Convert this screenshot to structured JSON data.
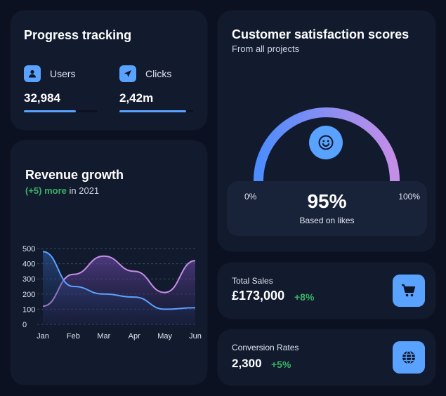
{
  "progress": {
    "title": "Progress tracking",
    "users": {
      "label": "Users",
      "value": "32,984",
      "icon": "user-icon",
      "progress": 0.7
    },
    "clicks": {
      "label": "Clicks",
      "value": "2,42m",
      "icon": "send-icon",
      "progress": 0.9
    }
  },
  "revenue": {
    "title": "Revenue growth",
    "subtitle_highlight": "(+5) more",
    "subtitle_rest": " in 2021"
  },
  "satisfaction": {
    "title": "Customer satisfaction scores",
    "subtitle": "From all projects",
    "min_label": "0%",
    "max_label": "100%",
    "value": "95%",
    "value_fraction": 0.95,
    "note": "Based on likes",
    "icon": "smile-icon"
  },
  "total_sales": {
    "label": "Total Sales",
    "value": "£173,000",
    "change": "+8%",
    "icon": "cart-icon"
  },
  "conversion": {
    "label": "Conversion Rates",
    "value": "2,300",
    "change": "+5%",
    "icon": "globe-icon"
  },
  "colors": {
    "accent": "#5aa2ff",
    "positive": "#39b265",
    "purple": "#c58ee6",
    "card": "#121a2e",
    "bg": "#0b1120"
  },
  "chart_data": {
    "type": "area",
    "categories": [
      "Jan",
      "Feb",
      "Mar",
      "Apr",
      "May",
      "Jun"
    ],
    "y_ticks": [
      "500",
      "400",
      "300",
      "200",
      "100",
      "0"
    ],
    "ylim": [
      0,
      500
    ],
    "series": [
      {
        "values": [
          120,
          330,
          450,
          350,
          210,
          420
        ]
      },
      {
        "values": [
          480,
          250,
          200,
          180,
          100,
          110
        ]
      }
    ]
  }
}
